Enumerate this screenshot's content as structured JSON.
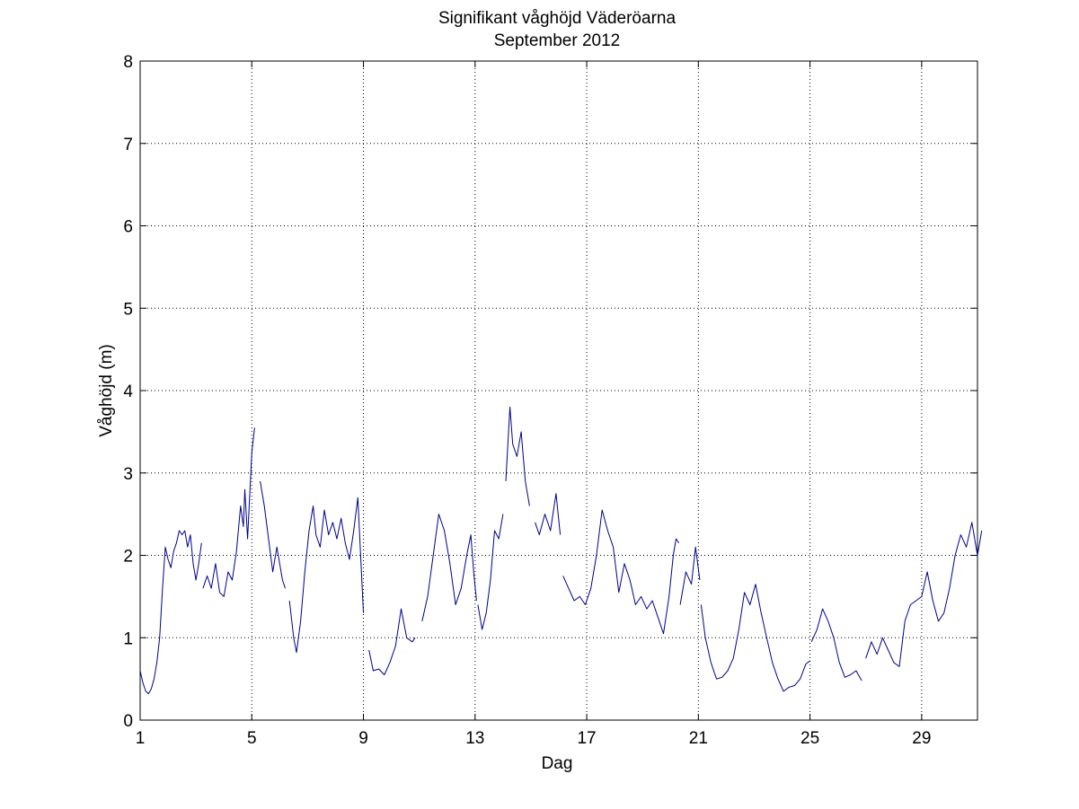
{
  "chart_data": {
    "type": "line",
    "title": "Signifikant våghöjd Väderöarna",
    "subtitle": "September 2012",
    "xlabel": "Dag",
    "ylabel": "Våghöjd (m)",
    "xlim": [
      1,
      31
    ],
    "ylim": [
      0,
      8
    ],
    "xticks": [
      1,
      5,
      9,
      13,
      17,
      21,
      25,
      29
    ],
    "yticks": [
      0,
      1,
      2,
      3,
      4,
      5,
      6,
      7,
      8
    ],
    "grid": true,
    "line_color": "#00008b",
    "series": [
      {
        "segments": [
          [
            [
              1.0,
              0.6
            ],
            [
              1.1,
              0.45
            ],
            [
              1.2,
              0.35
            ],
            [
              1.3,
              0.32
            ],
            [
              1.4,
              0.38
            ],
            [
              1.5,
              0.5
            ],
            [
              1.6,
              0.7
            ],
            [
              1.7,
              1.0
            ],
            [
              1.8,
              1.6
            ],
            [
              1.9,
              2.1
            ],
            [
              2.0,
              1.95
            ],
            [
              2.1,
              1.85
            ],
            [
              2.2,
              2.05
            ],
            [
              2.3,
              2.15
            ],
            [
              2.4,
              2.3
            ],
            [
              2.5,
              2.25
            ],
            [
              2.6,
              2.3
            ],
            [
              2.7,
              2.1
            ],
            [
              2.8,
              2.25
            ],
            [
              2.9,
              1.9
            ],
            [
              3.0,
              1.7
            ],
            [
              3.1,
              1.9
            ],
            [
              3.2,
              2.15
            ]
          ],
          [
            [
              3.25,
              1.6
            ],
            [
              3.4,
              1.75
            ],
            [
              3.55,
              1.6
            ],
            [
              3.7,
              1.9
            ],
            [
              3.85,
              1.55
            ],
            [
              4.0,
              1.5
            ],
            [
              4.15,
              1.8
            ],
            [
              4.3,
              1.7
            ],
            [
              4.45,
              2.05
            ],
            [
              4.6,
              2.6
            ],
            [
              4.7,
              2.35
            ],
            [
              4.75,
              2.8
            ],
            [
              4.85,
              2.2
            ],
            [
              4.95,
              2.9
            ],
            [
              5.0,
              3.25
            ],
            [
              5.1,
              3.55
            ]
          ],
          [
            [
              5.3,
              2.9
            ],
            [
              5.45,
              2.6
            ],
            [
              5.6,
              2.2
            ],
            [
              5.75,
              1.8
            ],
            [
              5.9,
              2.1
            ],
            [
              6.0,
              1.9
            ],
            [
              6.1,
              1.7
            ],
            [
              6.2,
              1.6
            ]
          ],
          [
            [
              6.35,
              1.45
            ],
            [
              6.5,
              1.0
            ],
            [
              6.6,
              0.82
            ],
            [
              6.75,
              1.2
            ],
            [
              6.9,
              1.8
            ],
            [
              7.05,
              2.3
            ],
            [
              7.2,
              2.6
            ],
            [
              7.3,
              2.25
            ],
            [
              7.45,
              2.1
            ],
            [
              7.6,
              2.55
            ],
            [
              7.75,
              2.25
            ],
            [
              7.9,
              2.4
            ],
            [
              8.05,
              2.2
            ],
            [
              8.2,
              2.45
            ],
            [
              8.35,
              2.15
            ],
            [
              8.5,
              1.95
            ],
            [
              8.65,
              2.3
            ],
            [
              8.8,
              2.7
            ],
            [
              8.9,
              2.0
            ],
            [
              9.0,
              1.3
            ]
          ],
          [
            [
              9.2,
              0.85
            ],
            [
              9.35,
              0.6
            ],
            [
              9.55,
              0.62
            ],
            [
              9.75,
              0.55
            ],
            [
              9.95,
              0.7
            ],
            [
              10.15,
              0.9
            ],
            [
              10.35,
              1.35
            ],
            [
              10.55,
              1.0
            ],
            [
              10.75,
              0.95
            ],
            [
              10.85,
              1.0
            ]
          ],
          [
            [
              11.1,
              1.2
            ],
            [
              11.3,
              1.5
            ],
            [
              11.5,
              2.0
            ],
            [
              11.7,
              2.5
            ],
            [
              11.9,
              2.3
            ],
            [
              12.1,
              1.9
            ],
            [
              12.3,
              1.4
            ],
            [
              12.5,
              1.6
            ],
            [
              12.7,
              2.0
            ],
            [
              12.85,
              2.25
            ],
            [
              12.95,
              1.8
            ],
            [
              13.05,
              1.45
            ]
          ],
          [
            [
              13.1,
              1.4
            ],
            [
              13.25,
              1.1
            ],
            [
              13.4,
              1.3
            ],
            [
              13.55,
              1.7
            ],
            [
              13.7,
              2.3
            ],
            [
              13.85,
              2.2
            ],
            [
              14.0,
              2.5
            ]
          ],
          [
            [
              14.1,
              2.9
            ],
            [
              14.25,
              3.8
            ],
            [
              14.35,
              3.35
            ],
            [
              14.5,
              3.2
            ],
            [
              14.65,
              3.5
            ],
            [
              14.8,
              2.9
            ],
            [
              14.95,
              2.6
            ]
          ],
          [
            [
              15.15,
              2.4
            ],
            [
              15.3,
              2.25
            ],
            [
              15.5,
              2.5
            ],
            [
              15.7,
              2.3
            ],
            [
              15.9,
              2.75
            ],
            [
              16.05,
              2.25
            ]
          ],
          [
            [
              16.15,
              1.75
            ],
            [
              16.35,
              1.6
            ],
            [
              16.55,
              1.45
            ],
            [
              16.75,
              1.5
            ],
            [
              16.95,
              1.4
            ],
            [
              17.15,
              1.6
            ],
            [
              17.35,
              2.0
            ],
            [
              17.55,
              2.55
            ],
            [
              17.75,
              2.3
            ],
            [
              17.95,
              2.1
            ],
            [
              18.15,
              1.55
            ],
            [
              18.35,
              1.9
            ],
            [
              18.55,
              1.7
            ],
            [
              18.75,
              1.4
            ],
            [
              18.95,
              1.5
            ],
            [
              19.15,
              1.35
            ],
            [
              19.35,
              1.45
            ],
            [
              19.55,
              1.25
            ],
            [
              19.75,
              1.05
            ],
            [
              19.95,
              1.5
            ],
            [
              20.1,
              2.0
            ],
            [
              20.2,
              2.2
            ],
            [
              20.3,
              2.15
            ]
          ],
          [
            [
              20.35,
              1.4
            ],
            [
              20.55,
              1.8
            ],
            [
              20.75,
              1.65
            ],
            [
              20.9,
              2.1
            ],
            [
              21.05,
              1.7
            ]
          ],
          [
            [
              21.1,
              1.4
            ],
            [
              21.25,
              1.0
            ],
            [
              21.45,
              0.7
            ],
            [
              21.65,
              0.5
            ],
            [
              21.85,
              0.52
            ],
            [
              22.05,
              0.6
            ],
            [
              22.25,
              0.75
            ],
            [
              22.45,
              1.1
            ],
            [
              22.65,
              1.55
            ],
            [
              22.85,
              1.4
            ],
            [
              23.05,
              1.65
            ],
            [
              23.25,
              1.3
            ],
            [
              23.45,
              1.0
            ],
            [
              23.65,
              0.7
            ],
            [
              23.85,
              0.5
            ],
            [
              24.05,
              0.35
            ],
            [
              24.25,
              0.4
            ],
            [
              24.45,
              0.42
            ],
            [
              24.65,
              0.5
            ],
            [
              24.85,
              0.68
            ],
            [
              25.0,
              0.72
            ]
          ],
          [
            [
              25.05,
              0.95
            ],
            [
              25.25,
              1.1
            ],
            [
              25.45,
              1.35
            ],
            [
              25.65,
              1.2
            ],
            [
              25.85,
              1.0
            ],
            [
              26.05,
              0.7
            ],
            [
              26.25,
              0.52
            ],
            [
              26.45,
              0.55
            ],
            [
              26.65,
              0.6
            ],
            [
              26.85,
              0.48
            ]
          ],
          [
            [
              27.0,
              0.75
            ],
            [
              27.2,
              0.95
            ],
            [
              27.4,
              0.8
            ],
            [
              27.6,
              1.0
            ],
            [
              27.8,
              0.85
            ],
            [
              28.0,
              0.7
            ],
            [
              28.2,
              0.65
            ],
            [
              28.4,
              1.2
            ],
            [
              28.6,
              1.4
            ],
            [
              28.8,
              1.45
            ],
            [
              29.0,
              1.5
            ],
            [
              29.2,
              1.8
            ],
            [
              29.4,
              1.45
            ],
            [
              29.6,
              1.2
            ],
            [
              29.8,
              1.3
            ],
            [
              30.0,
              1.6
            ],
            [
              30.2,
              2.0
            ],
            [
              30.4,
              2.25
            ],
            [
              30.6,
              2.1
            ],
            [
              30.8,
              2.4
            ],
            [
              31.0,
              2.0
            ],
            [
              31.15,
              2.3
            ]
          ]
        ]
      }
    ]
  }
}
